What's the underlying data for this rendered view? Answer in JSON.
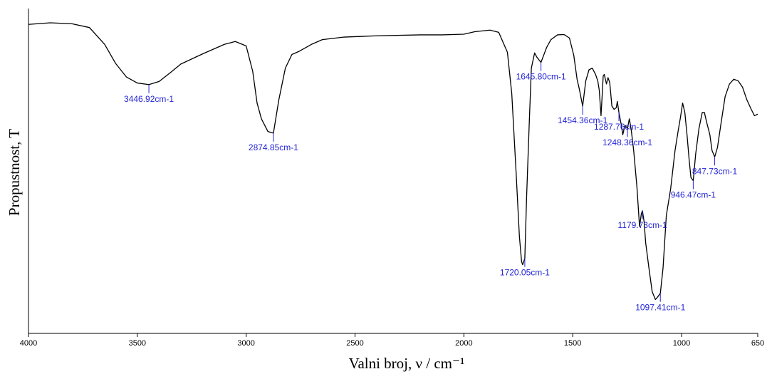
{
  "chart_data": {
    "type": "line",
    "xlabel": "Valni broj, ν / cm⁻¹",
    "ylabel": "Propustnost, T",
    "xlim": [
      4000,
      650
    ],
    "x_reversed": true,
    "ylim": [
      0,
      100
    ],
    "y_ticks_shown": false,
    "grid": false,
    "x_ticks": [
      4000,
      3500,
      3000,
      2500,
      2000,
      1500,
      1000,
      650
    ],
    "x_tick_labels": [
      "4000",
      "3500",
      "3000",
      "2500",
      "2000",
      "1500",
      "1000",
      "650"
    ],
    "series": [
      {
        "points": [
          [
            4000,
            96.8
          ],
          [
            3900,
            97.3
          ],
          [
            3800,
            97.0
          ],
          [
            3720,
            95.8
          ],
          [
            3650,
            90.5
          ],
          [
            3600,
            84.5
          ],
          [
            3550,
            80.2
          ],
          [
            3500,
            78.3
          ],
          [
            3446.92,
            77.8
          ],
          [
            3400,
            78.8
          ],
          [
            3350,
            81.5
          ],
          [
            3300,
            84.3
          ],
          [
            3200,
            87.5
          ],
          [
            3100,
            90.5
          ],
          [
            3050,
            91.4
          ],
          [
            3000,
            90.0
          ],
          [
            2970,
            82.0
          ],
          [
            2950,
            72.0
          ],
          [
            2930,
            67.0
          ],
          [
            2900,
            63.0
          ],
          [
            2874.85,
            62.5
          ],
          [
            2850,
            73.0
          ],
          [
            2820,
            83.0
          ],
          [
            2790,
            87.3
          ],
          [
            2760,
            88.2
          ],
          [
            2700,
            90.5
          ],
          [
            2650,
            92.0
          ],
          [
            2550,
            92.8
          ],
          [
            2400,
            93.2
          ],
          [
            2200,
            93.5
          ],
          [
            2100,
            93.5
          ],
          [
            2000,
            93.7
          ],
          [
            1950,
            94.5
          ],
          [
            1880,
            95.0
          ],
          [
            1840,
            94.3
          ],
          [
            1800,
            88.0
          ],
          [
            1780,
            75.0
          ],
          [
            1760,
            50.0
          ],
          [
            1745,
            30.0
          ],
          [
            1735,
            22.0
          ],
          [
            1730,
            21.0
          ],
          [
            1720.05,
            23.0
          ],
          [
            1712,
            42.0
          ],
          [
            1700,
            65.0
          ],
          [
            1690,
            83.0
          ],
          [
            1675,
            87.8
          ],
          [
            1665,
            86.5
          ],
          [
            1645.8,
            84.8
          ],
          [
            1620,
            89.5
          ],
          [
            1600,
            92.0
          ],
          [
            1570,
            93.5
          ],
          [
            1540,
            93.6
          ],
          [
            1515,
            92.5
          ],
          [
            1495,
            87.0
          ],
          [
            1480,
            79.5
          ],
          [
            1470,
            76.5
          ],
          [
            1454.36,
            71.0
          ],
          [
            1440,
            79.0
          ],
          [
            1425,
            82.5
          ],
          [
            1410,
            83.0
          ],
          [
            1395,
            81.0
          ],
          [
            1385,
            79.0
          ],
          [
            1378,
            76.0
          ],
          [
            1370,
            68.0
          ],
          [
            1365,
            74.0
          ],
          [
            1360,
            80.5
          ],
          [
            1355,
            81.0
          ],
          [
            1345,
            78.0
          ],
          [
            1338,
            80.0
          ],
          [
            1330,
            78.5
          ],
          [
            1320,
            71.0
          ],
          [
            1310,
            70.0
          ],
          [
            1300,
            70.5
          ],
          [
            1295,
            72.5
          ],
          [
            1287.76,
            69.0
          ],
          [
            1278,
            65.5
          ],
          [
            1270,
            62.0
          ],
          [
            1260,
            65.0
          ],
          [
            1248.36,
            64.0
          ],
          [
            1240,
            67.0
          ],
          [
            1232,
            64.0
          ],
          [
            1220,
            57.0
          ],
          [
            1205,
            45.5
          ],
          [
            1193,
            33.0
          ],
          [
            1185,
            37.0
          ],
          [
            1179.73,
            38.0
          ],
          [
            1172,
            34.5
          ],
          [
            1165,
            28.0
          ],
          [
            1150,
            20.0
          ],
          [
            1135,
            12.5
          ],
          [
            1120,
            10.0
          ],
          [
            1110,
            10.8
          ],
          [
            1097.41,
            12.0
          ],
          [
            1085,
            20.0
          ],
          [
            1070,
            36.5
          ],
          [
            1050,
            45.0
          ],
          [
            1030,
            57.0
          ],
          [
            1015,
            63.5
          ],
          [
            1005,
            67.5
          ],
          [
            995,
            72.0
          ],
          [
            985,
            69.0
          ],
          [
            975,
            62.0
          ],
          [
            965,
            54.0
          ],
          [
            957,
            48.5
          ],
          [
            946.47,
            47.5
          ],
          [
            935,
            56.0
          ],
          [
            920,
            64.0
          ],
          [
            905,
            69.0
          ],
          [
            895,
            69.0
          ],
          [
            885,
            66.0
          ],
          [
            870,
            62.0
          ],
          [
            860,
            57.0
          ],
          [
            847.73,
            55.0
          ],
          [
            835,
            58.0
          ],
          [
            820,
            65.0
          ],
          [
            800,
            74.0
          ],
          [
            780,
            78.0
          ],
          [
            760,
            79.5
          ],
          [
            740,
            79.0
          ],
          [
            720,
            77.0
          ],
          [
            700,
            73.0
          ],
          [
            680,
            70.0
          ],
          [
            665,
            68.0
          ],
          [
            650,
            68.5
          ]
        ]
      }
    ],
    "annotations": [
      {
        "x": 3446.92,
        "label": "3446.92cm-1"
      },
      {
        "x": 2874.85,
        "label": "2874.85cm-1"
      },
      {
        "x": 1720.05,
        "label": "1720.05cm-1"
      },
      {
        "x": 1645.8,
        "label": "1645.80cm-1"
      },
      {
        "x": 1454.36,
        "label": "1454.36cm-1"
      },
      {
        "x": 1287.76,
        "label": "1287.76cm-1"
      },
      {
        "x": 1248.36,
        "label": "1248.36cm-1"
      },
      {
        "x": 1179.73,
        "label": "1179.73cm-1"
      },
      {
        "x": 1097.41,
        "label": "1097.41cm-1"
      },
      {
        "x": 946.47,
        "label": "946.47cm-1"
      },
      {
        "x": 847.73,
        "label": "847.73cm-1"
      }
    ],
    "colors": {
      "line": "#000000",
      "annotation": "#2424d8",
      "axis": "#000000"
    }
  }
}
